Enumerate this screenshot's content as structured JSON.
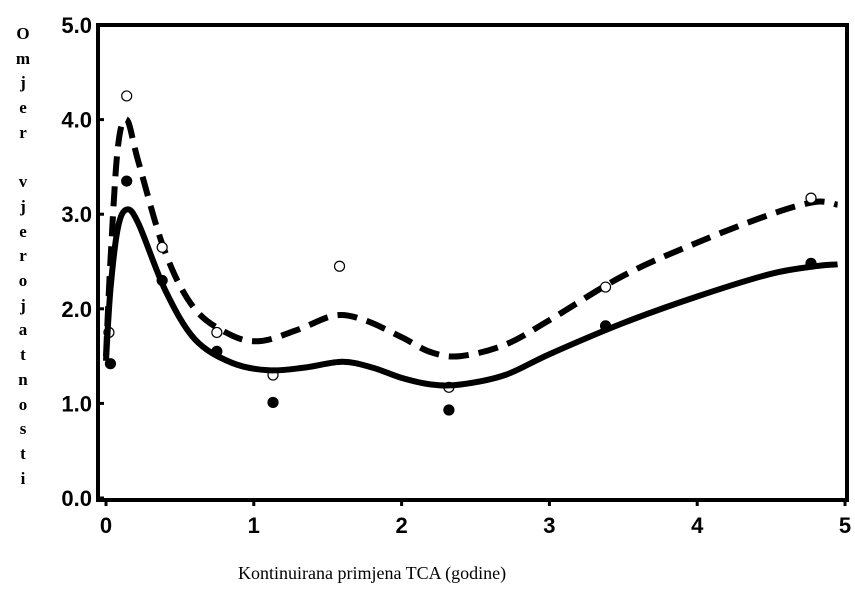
{
  "chart_data": {
    "type": "line",
    "xlabel": "Kontinuirana primjena TCA (godine)",
    "ylabel": "Omjer vjerojatnosti",
    "xlim": [
      0,
      5
    ],
    "ylim": [
      0,
      5
    ],
    "xticks": [
      "0",
      "1",
      "2",
      "3",
      "4",
      "5"
    ],
    "yticks": [
      "0.0",
      "1.0",
      "2.0",
      "3.0",
      "4.0",
      "5.0"
    ],
    "grid": false,
    "series": [
      {
        "style": "dashed",
        "color": "#000000",
        "curve": [
          [
            0.0,
            1.5
          ],
          [
            0.03,
            2.5
          ],
          [
            0.08,
            3.7
          ],
          [
            0.14,
            4.0
          ],
          [
            0.22,
            3.55
          ],
          [
            0.4,
            2.6
          ],
          [
            0.6,
            2.0
          ],
          [
            0.85,
            1.72
          ],
          [
            1.05,
            1.66
          ],
          [
            1.3,
            1.78
          ],
          [
            1.55,
            1.93
          ],
          [
            1.75,
            1.88
          ],
          [
            2.0,
            1.7
          ],
          [
            2.2,
            1.54
          ],
          [
            2.4,
            1.5
          ],
          [
            2.7,
            1.62
          ],
          [
            3.0,
            1.88
          ],
          [
            3.5,
            2.35
          ],
          [
            4.0,
            2.7
          ],
          [
            4.5,
            3.0
          ],
          [
            4.8,
            3.13
          ],
          [
            4.95,
            3.1
          ]
        ],
        "points": [
          [
            0.02,
            1.75
          ],
          [
            0.14,
            4.25
          ],
          [
            0.38,
            2.65
          ],
          [
            0.75,
            1.75
          ],
          [
            1.13,
            1.3
          ],
          [
            1.58,
            2.45
          ],
          [
            2.32,
            1.17
          ],
          [
            3.38,
            2.23
          ],
          [
            4.77,
            3.17
          ]
        ]
      },
      {
        "style": "solid",
        "color": "#000000",
        "curve": [
          [
            0.0,
            1.45
          ],
          [
            0.03,
            2.2
          ],
          [
            0.08,
            2.85
          ],
          [
            0.14,
            3.05
          ],
          [
            0.22,
            2.9
          ],
          [
            0.4,
            2.2
          ],
          [
            0.6,
            1.68
          ],
          [
            0.85,
            1.43
          ],
          [
            1.1,
            1.35
          ],
          [
            1.35,
            1.38
          ],
          [
            1.6,
            1.44
          ],
          [
            1.8,
            1.38
          ],
          [
            2.0,
            1.27
          ],
          [
            2.2,
            1.2
          ],
          [
            2.4,
            1.2
          ],
          [
            2.7,
            1.3
          ],
          [
            3.0,
            1.52
          ],
          [
            3.5,
            1.85
          ],
          [
            4.0,
            2.13
          ],
          [
            4.5,
            2.37
          ],
          [
            4.8,
            2.45
          ],
          [
            4.95,
            2.47
          ]
        ],
        "points": [
          [
            0.03,
            1.42
          ],
          [
            0.14,
            3.35
          ],
          [
            0.38,
            2.3
          ],
          [
            0.75,
            1.55
          ],
          [
            1.13,
            1.01
          ],
          [
            2.32,
            0.93
          ],
          [
            3.38,
            1.82
          ],
          [
            4.77,
            2.48
          ]
        ]
      }
    ]
  }
}
